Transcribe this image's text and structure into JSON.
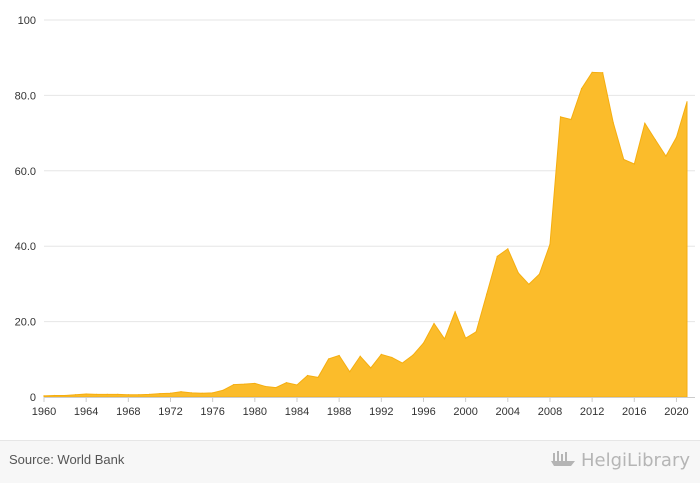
{
  "chart_data": {
    "type": "area",
    "title": "",
    "xlabel": "",
    "ylabel": "",
    "x": [
      1960,
      1961,
      1962,
      1963,
      1964,
      1965,
      1966,
      1967,
      1968,
      1969,
      1970,
      1971,
      1972,
      1973,
      1974,
      1975,
      1976,
      1977,
      1978,
      1979,
      1980,
      1981,
      1982,
      1983,
      1984,
      1985,
      1986,
      1987,
      1988,
      1989,
      1990,
      1991,
      1992,
      1993,
      1994,
      1995,
      1996,
      1997,
      1998,
      1999,
      2000,
      2001,
      2002,
      2003,
      2004,
      2005,
      2006,
      2007,
      2008,
      2009,
      2010,
      2011,
      2012,
      2013,
      2014,
      2015,
      2016,
      2017,
      2018,
      2019,
      2020,
      2021
    ],
    "series": [
      {
        "name": "",
        "values": [
          0.3,
          0.4,
          0.4,
          0.6,
          0.8,
          0.7,
          0.7,
          0.7,
          0.6,
          0.6,
          0.7,
          0.9,
          1.0,
          1.4,
          1.1,
          1.0,
          1.1,
          1.8,
          3.3,
          3.4,
          3.6,
          2.8,
          2.5,
          3.8,
          3.2,
          5.7,
          5.2,
          10.1,
          11.0,
          6.7,
          10.8,
          7.7,
          11.3,
          10.5,
          9.0,
          11.1,
          14.3,
          19.5,
          15.4,
          22.6,
          15.6,
          17.3,
          27.3,
          37.3,
          39.3,
          32.9,
          29.9,
          32.6,
          40.5,
          74.3,
          73.6,
          81.8,
          86.1,
          86.0,
          72.8,
          63.0,
          61.8,
          72.6,
          68.2,
          63.9,
          68.9,
          78.3
        ]
      }
    ],
    "xticks": [
      1960,
      1964,
      1968,
      1972,
      1976,
      1980,
      1984,
      1988,
      1992,
      1996,
      2000,
      2004,
      2008,
      2012,
      2016,
      2020
    ],
    "yticks": [
      0,
      20.0,
      40.0,
      60.0,
      80.0,
      100
    ],
    "ytick_labels": [
      "0",
      "20.0",
      "40.0",
      "60.0",
      "80.0",
      "100"
    ],
    "ylim": [
      0,
      100
    ],
    "xlim": [
      1960,
      2021
    ],
    "grid": "horizontal",
    "legend": "none"
  },
  "colors": {
    "area_fill": "#fbbc2b",
    "area_stroke": "#f5ae10",
    "grid": "#e6e6e6",
    "axis": "#cccccc",
    "text": "#333333"
  },
  "footer": {
    "source": "Source: World Bank",
    "brand": "HelgiLibrary",
    "brand_icon": "helgi-ship-icon"
  }
}
